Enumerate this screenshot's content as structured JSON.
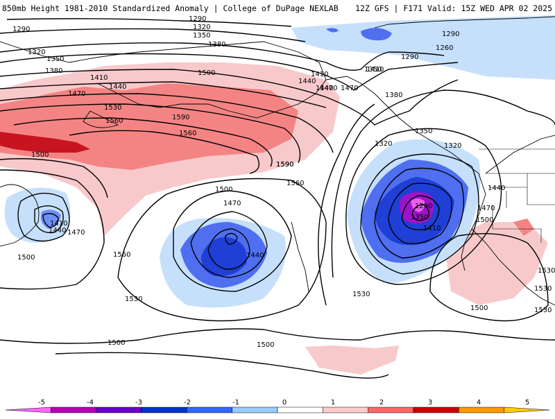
{
  "header": {
    "left_title": "850mb Height 1981-2010 Standardized Anomaly | College of DuPage NEXLAB",
    "right_title": "12Z GFS | F171 Valid: 15Z WED APR 02 2025"
  },
  "map": {
    "contour_labels": [
      "1290",
      "1290",
      "1320",
      "1350",
      "1380",
      "1290",
      "1260",
      "1290",
      "1320",
      "1350",
      "1380",
      "1410",
      "1440",
      "1470",
      "1500",
      "1530",
      "1560",
      "1590",
      "1590",
      "1560",
      "1590",
      "1560",
      "1500",
      "1410",
      "1440",
      "1470",
      "1380",
      "1410",
      "1440",
      "1470",
      "1350",
      "1320",
      "1350",
      "1320",
      "1500",
      "1470",
      "1440",
      "1500",
      "1560",
      "1530",
      "1410",
      "1440",
      "1470",
      "1530",
      "1350",
      "1410",
      "1290",
      "1440",
      "1470",
      "1500",
      "1530",
      "1530",
      "1530",
      "1500",
      "1500",
      "1500"
    ]
  },
  "colorbar": {
    "ticks": [
      "-5",
      "-4",
      "-3",
      "-2",
      "-1",
      "0",
      "1",
      "2",
      "3",
      "4",
      "5"
    ],
    "colors": [
      "#ff66ff",
      "#b300b3",
      "#6600cc",
      "#0033cc",
      "#3366ff",
      "#99ccff",
      "#ffffff",
      "#ffcccc",
      "#ff6666",
      "#cc0000",
      "#ff9900",
      "#ffcc00"
    ]
  }
}
